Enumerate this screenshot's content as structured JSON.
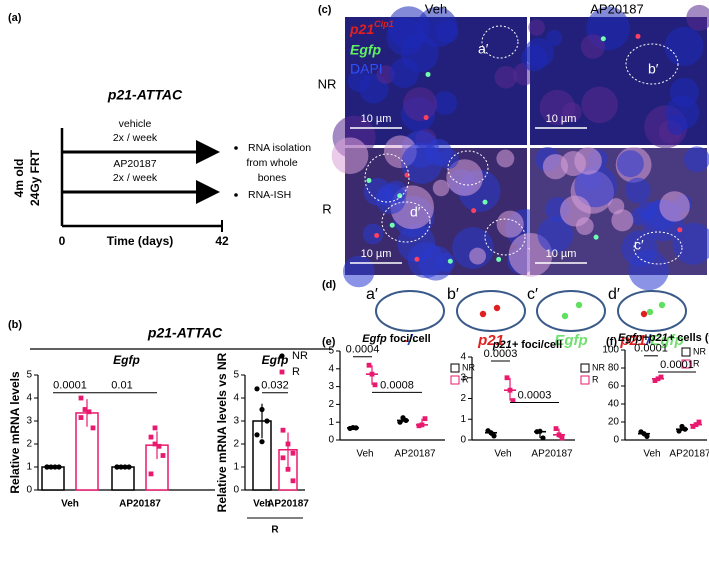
{
  "panel_a": {
    "label": "(a)",
    "title": "p21-ATTAC",
    "ylabel": [
      "4m old",
      "24Gy FRT"
    ],
    "arrows": [
      {
        "label": "vehicle",
        "schedule": "2x / week"
      },
      {
        "label": "AP20187",
        "schedule": "2x / week"
      }
    ],
    "xaxis": {
      "start": "0",
      "label": "Time (days)",
      "end": "42"
    },
    "bullets": [
      [
        "RNA isolation",
        "from whole",
        "bones"
      ],
      [
        "RNA-ISH"
      ]
    ]
  },
  "panel_b": {
    "label": "(b)",
    "title": "p21-ATTAC"
  },
  "panel_c": {
    "label": "(c)",
    "columns": [
      "Veh",
      "AP20187"
    ],
    "rows": [
      "NR",
      "R"
    ],
    "legend": {
      "p21": "p21",
      "superscript": "Cip1",
      "egfp": "Egfp",
      "dapi": "DAPI"
    },
    "scale_bars": [
      "10 µm",
      "10 µm",
      "10 µm",
      "10 µm"
    ],
    "cell_labels": [
      "a′",
      "b′",
      "d′",
      "c′"
    ]
  },
  "panel_d": {
    "label": "(d)",
    "cells": [
      "a′",
      "b′",
      "c′",
      "d′"
    ],
    "captions": [
      [
        "-",
        "/",
        "-"
      ],
      [
        "p21"
      ],
      [
        "Egfp"
      ],
      [
        "p21",
        "/",
        "Egfp"
      ]
    ],
    "caption_colors": [
      [
        "#e02020",
        "#2040c0",
        "#60d060"
      ],
      [
        "#e02020"
      ],
      [
        "#70e070"
      ],
      [
        "#e02020",
        "#2040c0",
        "#70e070"
      ]
    ]
  },
  "panel_e": {
    "label": "(e)"
  },
  "panel_f": {
    "label": "(f)"
  },
  "chart_data": [
    {
      "type": "bar",
      "title": "Egfp",
      "ylabel": "Relative mRNA levels",
      "categories": [
        "Veh",
        "AP20187"
      ],
      "ylim": [
        0,
        5
      ],
      "yticks": [
        0,
        1,
        2,
        3,
        4,
        5
      ],
      "series": [
        {
          "name": "NR",
          "color": "#000000",
          "values": [
            1.0,
            1.0
          ],
          "errors": [
            0.02,
            0.03
          ],
          "points": [
            [
              1,
              1,
              1,
              1,
              1
            ],
            [
              1,
              1,
              1,
              1,
              1
            ]
          ]
        },
        {
          "name": "R",
          "color": "#e8196e",
          "values": [
            3.35,
            1.95
          ],
          "errors": [
            0.6,
            0.6
          ],
          "points": [
            [
              4.0,
              3.5,
              3.4,
              2.7,
              3.15
            ],
            [
              2.3,
              2.0,
              1.9,
              1.5,
              0.7,
              2.7
            ]
          ]
        }
      ],
      "annotations": [
        "0.0001",
        "0.01"
      ]
    },
    {
      "type": "bar",
      "title": "Egfp",
      "ylabel": "Relative mRNA levels vs NR",
      "categories": [
        "Veh",
        "AP20187"
      ],
      "group": "R",
      "ylim": [
        0,
        5
      ],
      "yticks": [
        0,
        1,
        2,
        3,
        4,
        5
      ],
      "colors": [
        "#000000",
        "#e8196e"
      ],
      "values": [
        3.0,
        1.75
      ],
      "errors": [
        0.75,
        0.75
      ],
      "points": [
        [
          4.4,
          3.5,
          3.0,
          2.4,
          2.1
        ],
        [
          2.6,
          2.0,
          1.6,
          1.4,
          0.9,
          0.4
        ]
      ],
      "annotations": [
        "0.032"
      ]
    },
    {
      "type": "dot",
      "title": [
        "Egfp",
        "foci/cell"
      ],
      "categories": [
        "Veh",
        "AP20187"
      ],
      "ylim": [
        0,
        5
      ],
      "yticks": [
        0,
        1,
        2,
        3,
        4,
        5
      ],
      "series": [
        {
          "name": "NR",
          "color": "#000000",
          "values": [
            0.68,
            1.1
          ],
          "points": [
            [
              0.65,
              0.7,
              0.68
            ],
            [
              1.0,
              1.25,
              1.1
            ]
          ]
        },
        {
          "name": "R",
          "color": "#e8196e",
          "values": [
            3.7,
            0.85
          ],
          "points": [
            [
              4.2,
              3.7,
              3.1
            ],
            [
              0.8,
              0.85,
              1.2
            ]
          ]
        }
      ],
      "annotations": [
        "0.0004",
        "0.0008"
      ]
    },
    {
      "type": "dot",
      "title": [
        "p21+",
        "foci/cell"
      ],
      "categories": [
        "Veh",
        "AP20187"
      ],
      "ylim": [
        0,
        4
      ],
      "yticks": [
        0,
        1,
        2,
        3,
        4
      ],
      "series": [
        {
          "name": "NR",
          "color": "#000000",
          "values": [
            0.35,
            0.4
          ],
          "points": [
            [
              0.45,
              0.35,
              0.2
            ],
            [
              0.4,
              0.42,
              0.1
            ]
          ]
        },
        {
          "name": "R",
          "color": "#e8196e",
          "values": [
            2.4,
            0.25
          ],
          "points": [
            [
              3.0,
              2.4,
              1.9
            ],
            [
              0.55,
              0.25,
              0.1
            ]
          ]
        }
      ],
      "annotations": [
        "0.0003",
        "0.0003"
      ]
    },
    {
      "type": "dot",
      "title": [
        "Egfp+p21+",
        "cells (%)"
      ],
      "categories": [
        "Veh",
        "AP20187"
      ],
      "ylim": [
        0,
        100
      ],
      "yticks": [
        0,
        20,
        40,
        60,
        80,
        100
      ],
      "series": [
        {
          "name": "NR",
          "color": "#000000",
          "values": [
            7,
            12
          ],
          "points": [
            [
              9,
              7,
              4
            ],
            [
              10,
              15,
              12
            ]
          ]
        },
        {
          "name": "R",
          "color": "#e8196e",
          "values": [
            68,
            17
          ],
          "points": [
            [
              66,
              68,
              70
            ],
            [
              15,
              17,
              20
            ]
          ]
        }
      ],
      "annotations": [
        "0.0001",
        "0.0001"
      ]
    }
  ]
}
